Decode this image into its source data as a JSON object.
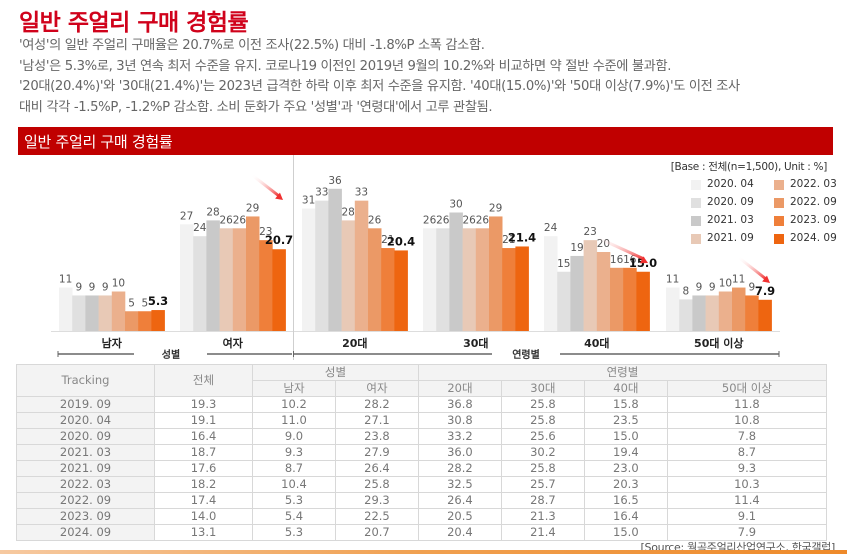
{
  "header": {
    "title": "일반 주얼리 구매 경험률",
    "description": [
      "'여성'의 일반 주얼리 구매율은 20.7%로 이전 조사(22.5%) 대비 -1.8%P 소폭 감소함.",
      "'남성'은 5.3%로, 3년 연속 최저 수준을 유지. 코로나19 이전인 2019년 9월의 10.2%와 비교하면 약 절반 수준에 불과함.",
      "'20대(20.4%)'와 '30대(21.4%)'는 2023년 급격한 하락 이후 최저 수준을 유지함. '40대(15.0%)'와 '50대 이상(7.9%)'도 이전 조사",
      "대비 각각 -1.5%P, -1.2%P 감소함. 소비 둔화가 주요 '성별'과 '연령대'에서 고루 관찰됨."
    ]
  },
  "banner": {
    "title": "일반 주얼리 구매 경험률"
  },
  "chart_data": {
    "type": "bar",
    "title": "일반 주얼리 구매 경험률",
    "note": "[Base : 전체(n=1,500), Unit : %]",
    "categories": [
      "남자",
      "여자",
      "20대",
      "30대",
      "40대",
      "50대 이상"
    ],
    "category_groups": [
      {
        "label": "성별",
        "categories": [
          "남자",
          "여자"
        ]
      },
      {
        "label": "연령별",
        "categories": [
          "20대",
          "30대",
          "40대",
          "50대 이상"
        ]
      }
    ],
    "series": [
      {
        "name": "2020. 04",
        "color": "#f2f2f2",
        "values": [
          11,
          27,
          31,
          26,
          24,
          11
        ],
        "labels": [
          "11",
          "27",
          "31",
          "26",
          "24",
          "11"
        ]
      },
      {
        "name": "2020. 09",
        "color": "#e0e0e0",
        "values": [
          9,
          24,
          33,
          26,
          15,
          8
        ],
        "labels": [
          "9",
          "24",
          "33",
          "26",
          "15",
          "8"
        ]
      },
      {
        "name": "2021. 03",
        "color": "#c9c9c9",
        "values": [
          9,
          28,
          36,
          30,
          19,
          9
        ],
        "labels": [
          "9",
          "28",
          "36",
          "30",
          "19",
          "9"
        ]
      },
      {
        "name": "2021. 09",
        "color": "#e8c9b6",
        "values": [
          9,
          26,
          28,
          26,
          23,
          9
        ],
        "labels": [
          "9",
          "26",
          "28",
          "26",
          "23",
          "9"
        ]
      },
      {
        "name": "2022. 03",
        "color": "#ebb08d",
        "values": [
          10,
          26,
          33,
          26,
          20,
          10
        ],
        "labels": [
          "10",
          "26",
          "33",
          "26",
          "20",
          "10"
        ]
      },
      {
        "name": "2022. 09",
        "color": "#eb9966",
        "values": [
          5,
          29,
          26,
          29,
          16,
          11
        ],
        "labels": [
          "5",
          "29",
          "26",
          "29",
          "16",
          "11"
        ]
      },
      {
        "name": "2023. 09",
        "color": "#ef7f3a",
        "values": [
          5,
          23,
          21,
          21,
          16,
          9
        ],
        "labels": [
          "5",
          "23",
          "21",
          "21",
          "16",
          "9"
        ]
      },
      {
        "name": "2024. 09",
        "color": "#ee6510",
        "values": [
          5.3,
          20.7,
          20.4,
          21.4,
          15.0,
          7.9
        ],
        "labels": [
          "5.3",
          "20.7",
          "20.4",
          "21.4",
          "15.0",
          "7.9"
        ],
        "highlight": true
      }
    ],
    "trend_arrows_on": [
      "여자",
      "40대",
      "50대 이상"
    ],
    "ylim": [
      0,
      40
    ],
    "xlabel": "",
    "ylabel": "",
    "grid": false,
    "legend_position": "top-right"
  },
  "legend": {
    "items": [
      {
        "label": "2020. 04",
        "color": "#f2f2f2"
      },
      {
        "label": "2020. 09",
        "color": "#e0e0e0"
      },
      {
        "label": "2021. 03",
        "color": "#c9c9c9"
      },
      {
        "label": "2021. 09",
        "color": "#e8c9b6"
      },
      {
        "label": "2022. 03",
        "color": "#ebb08d"
      },
      {
        "label": "2022. 09",
        "color": "#eb9966"
      },
      {
        "label": "2023. 09",
        "color": "#ef7f3a"
      },
      {
        "label": "2024. 09",
        "color": "#ee6510"
      }
    ]
  },
  "table": {
    "headers": {
      "tracking": "Tracking",
      "total": "전체",
      "gender_group": "성별",
      "age_group": "연령별",
      "sub": [
        "남자",
        "여자",
        "20대",
        "30대",
        "40대",
        "50대 이상"
      ]
    },
    "rows": [
      [
        "2019. 09",
        "19.3",
        "10.2",
        "28.2",
        "36.8",
        "25.8",
        "15.8",
        "11.8"
      ],
      [
        "2020. 04",
        "19.1",
        "11.0",
        "27.1",
        "30.8",
        "25.8",
        "23.5",
        "10.8"
      ],
      [
        "2020. 09",
        "16.4",
        "9.0",
        "23.8",
        "33.2",
        "25.6",
        "15.0",
        "7.8"
      ],
      [
        "2021. 03",
        "18.7",
        "9.3",
        "27.9",
        "36.0",
        "30.2",
        "19.4",
        "8.7"
      ],
      [
        "2021. 09",
        "17.6",
        "8.7",
        "26.4",
        "28.2",
        "25.8",
        "23.0",
        "9.3"
      ],
      [
        "2022. 03",
        "18.2",
        "10.4",
        "25.8",
        "32.5",
        "25.7",
        "20.3",
        "10.3"
      ],
      [
        "2022. 09",
        "17.4",
        "5.3",
        "29.3",
        "26.4",
        "28.7",
        "16.5",
        "11.4"
      ],
      [
        "2023. 09",
        "14.0",
        "5.4",
        "22.5",
        "20.5",
        "21.3",
        "16.4",
        "9.1"
      ],
      [
        "2024. 09",
        "13.1",
        "5.3",
        "20.7",
        "20.4",
        "21.4",
        "15.0",
        "7.9"
      ]
    ]
  },
  "source": "[Source: 월곡주얼리산업연구소, 한국갤럽]",
  "colors": {
    "brand_red": "#c00000",
    "title_red": "#d0021b",
    "arrow_red": "#f03030"
  }
}
